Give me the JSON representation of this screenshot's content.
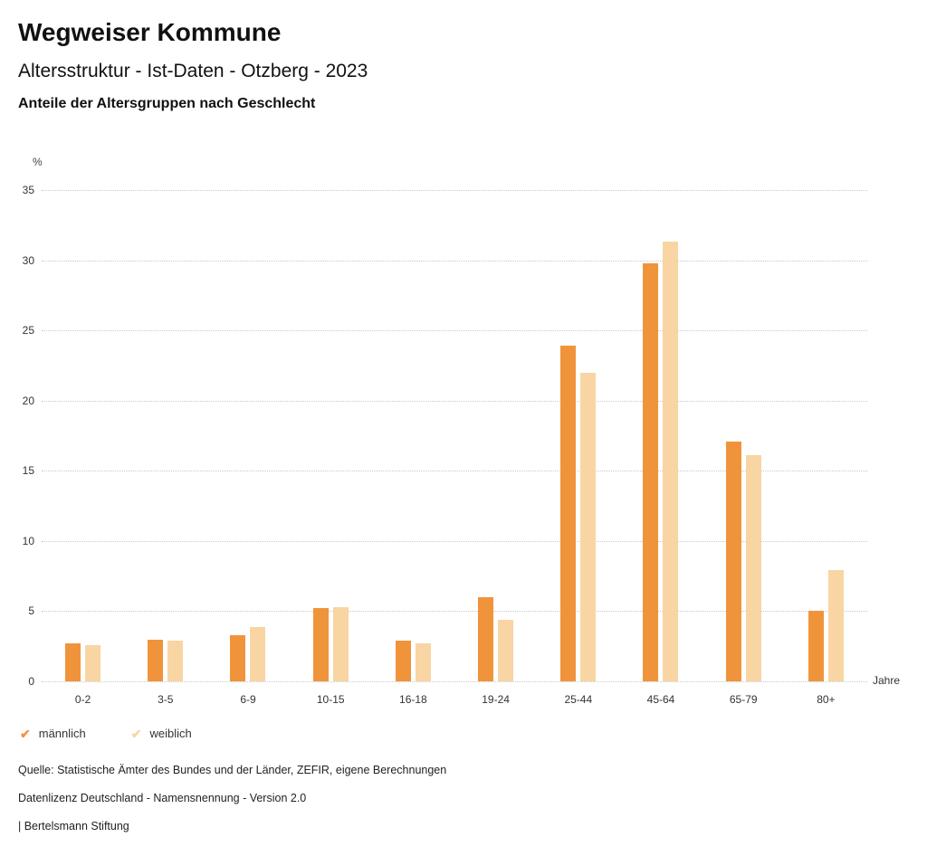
{
  "header": {
    "title": "Wegweiser Kommune",
    "subtitle": "Altersstruktur - Ist-Daten - Otzberg - 2023",
    "chart_heading": "Anteile der Altersgruppen nach Geschlecht"
  },
  "chart_data": {
    "type": "bar",
    "title": "Anteile der Altersgruppen nach Geschlecht",
    "unit_label": "%",
    "xlabel": "Jahre",
    "categories": [
      "0-2",
      "3-5",
      "6-9",
      "10-15",
      "16-18",
      "19-24",
      "25-44",
      "45-64",
      "65-79",
      "80+"
    ],
    "series": [
      {
        "name": "männlich",
        "color": "#F0943C",
        "values": [
          2.7,
          3.0,
          3.3,
          5.2,
          2.9,
          6.0,
          23.9,
          29.8,
          17.1,
          5.0
        ]
      },
      {
        "name": "weiblich",
        "color": "#F8D5A3",
        "values": [
          2.6,
          2.9,
          3.9,
          5.3,
          2.7,
          4.4,
          22.0,
          31.3,
          16.1,
          7.9
        ]
      }
    ],
    "ylim": [
      0,
      35
    ],
    "yticks": [
      0,
      5,
      10,
      15,
      20,
      25,
      30,
      35
    ],
    "grid": "dotted horizontal",
    "legend_position": "bottom-left"
  },
  "icons": {
    "check": "✔"
  },
  "legend": {
    "items": [
      {
        "label": "männlich",
        "color": "#F0943C"
      },
      {
        "label": "weiblich",
        "color": "#F8D5A3"
      }
    ]
  },
  "footer": {
    "source": "Quelle: Statistische Ämter des Bundes und der Länder, ZEFIR, eigene Berechnungen",
    "license": "Datenlizenz Deutschland - Namensnennung - Version 2.0",
    "attribution": "| Bertelsmann Stiftung"
  }
}
